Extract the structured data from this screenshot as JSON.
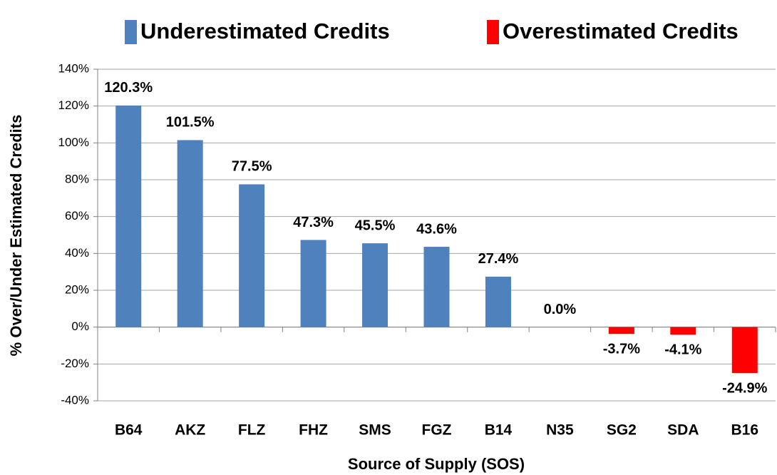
{
  "chart_data": {
    "type": "bar",
    "x_label": "Source of Supply (SOS)",
    "y_label": "% Over/Under Estimated Credits",
    "categories": [
      "B64",
      "AKZ",
      "FLZ",
      "FHZ",
      "SMS",
      "FGZ",
      "B14",
      "N35",
      "SG2",
      "SDA",
      "B16"
    ],
    "series": [
      {
        "name": "Underestimated Credits",
        "color": "#4f81bd",
        "values": [
          120.3,
          101.5,
          77.5,
          47.3,
          45.5,
          43.6,
          27.4,
          0.0,
          null,
          null,
          null
        ],
        "value_labels": [
          "120.3%",
          "101.5%",
          "77.5%",
          "47.3%",
          "45.5%",
          "43.6%",
          "27.4%",
          "0.0%",
          null,
          null,
          null
        ]
      },
      {
        "name": "Overestimated Credits",
        "color": "#ff0000",
        "values": [
          null,
          null,
          null,
          null,
          null,
          null,
          null,
          null,
          -3.7,
          -4.1,
          -24.9
        ],
        "value_labels": [
          null,
          null,
          null,
          null,
          null,
          null,
          null,
          null,
          "-3.7%",
          "-4.1%",
          "-24.9%"
        ]
      }
    ],
    "ylim": [
      -40,
      140
    ],
    "yticks": [
      {
        "value": -40,
        "label": "-40%"
      },
      {
        "value": -20,
        "label": "-20%"
      },
      {
        "value": 0,
        "label": "0%"
      },
      {
        "value": 20,
        "label": "20%"
      },
      {
        "value": 40,
        "label": "40%"
      },
      {
        "value": 60,
        "label": "60%"
      },
      {
        "value": 80,
        "label": "80%"
      },
      {
        "value": 100,
        "label": "100%"
      },
      {
        "value": 120,
        "label": "120%"
      },
      {
        "value": 140,
        "label": "140%"
      }
    ],
    "grid": true
  }
}
